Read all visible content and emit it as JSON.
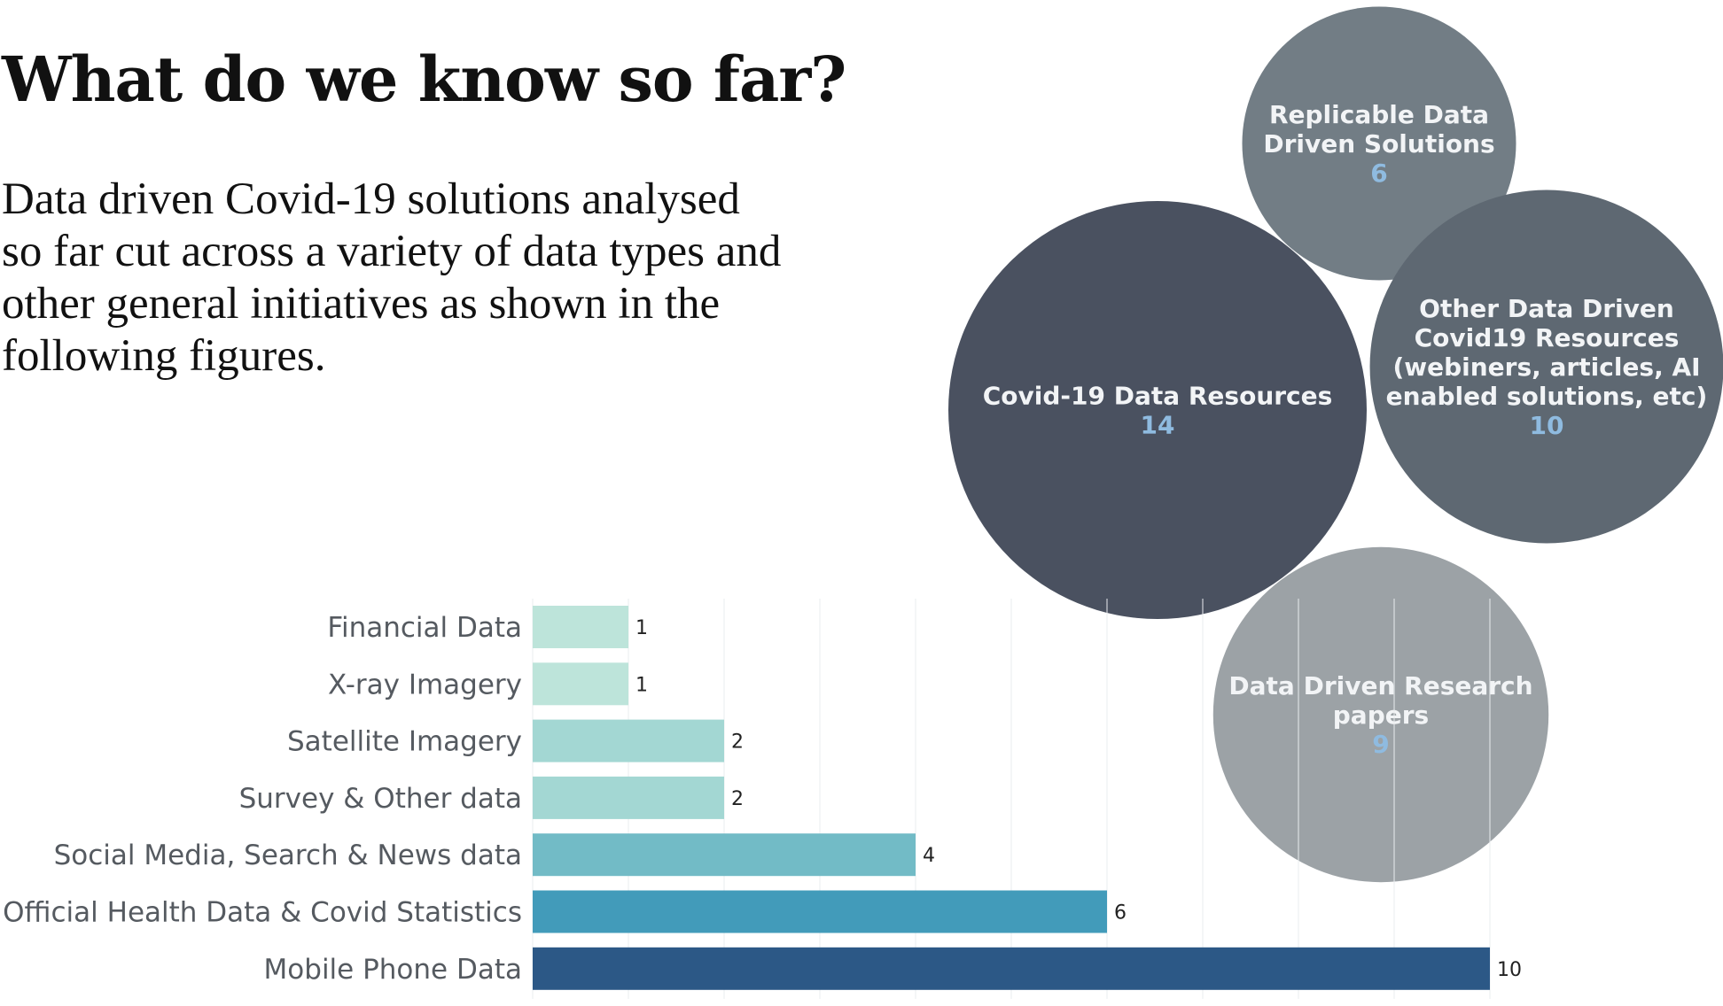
{
  "page": {
    "title": "What do we know so far?",
    "description": "Data driven Covid-19 solutions analysed so far cut across a variety of data types and other general initiatives as shown in the following figures."
  },
  "chart_data": [
    {
      "type": "bubble",
      "title": "",
      "bubbles": [
        {
          "label_lines": [
            "Replicable Data",
            "Driven Solutions"
          ],
          "value": 6,
          "color": "#727d85"
        },
        {
          "label_lines": [
            "Covid-19 Data Resources"
          ],
          "value": 14,
          "color": "#4a5160"
        },
        {
          "label_lines": [
            "Other Data Driven",
            "Covid19 Resources",
            "(webiners, articles, AI",
            "enabled solutions, etc)"
          ],
          "value": 10,
          "color": "#5e6872"
        },
        {
          "label_lines": [
            "Data Driven Research",
            "papers"
          ],
          "value": 9,
          "color": "#9ca2a6"
        }
      ],
      "label_color": "#f2f4f6",
      "value_color": "#8fbbe0"
    },
    {
      "type": "bar",
      "orientation": "horizontal",
      "title": "",
      "xlabel": "",
      "ylabel": "",
      "categories": [
        "Financial Data",
        "X-ray Imagery",
        "Satellite Imagery",
        "Survey & Other data",
        "Social Media, Search & News data",
        "Official Health Data & Covid Statistics",
        "Mobile Phone Data"
      ],
      "values": [
        1,
        1,
        2,
        2,
        4,
        6,
        10
      ],
      "colors": [
        "#bde4da",
        "#bde4da",
        "#a3d7d3",
        "#a3d7d3",
        "#72bbc6",
        "#429bba",
        "#2c5886"
      ],
      "xlim": [
        0,
        10
      ],
      "grid": true,
      "data_labels": true
    }
  ]
}
